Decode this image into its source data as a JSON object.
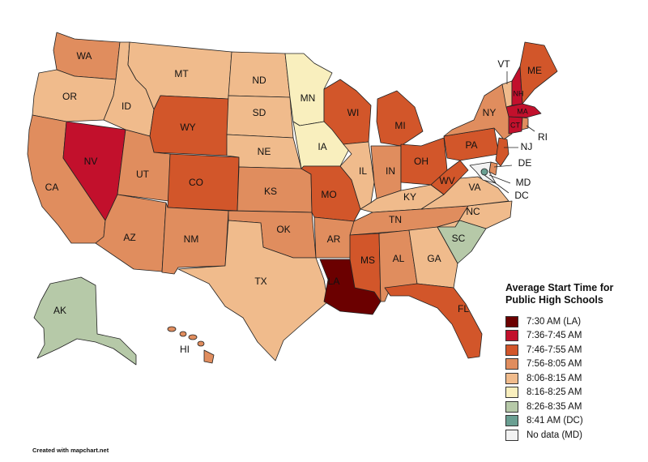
{
  "legend": {
    "title_line1": "Average Start Time for",
    "title_line2": "Public High Schools",
    "items": [
      {
        "label": "7:30 AM (LA)",
        "color": "#6b0000"
      },
      {
        "label": "7:36-7:45 AM",
        "color": "#c2102c"
      },
      {
        "label": "7:46-7:55 AM",
        "color": "#d2562a"
      },
      {
        "label": "7:56-8:05 AM",
        "color": "#e08d5e"
      },
      {
        "label": "8:06-8:15 AM",
        "color": "#f0bb8c"
      },
      {
        "label": "8:16-8:25 AM",
        "color": "#f9efbe"
      },
      {
        "label": "8:26-8:35 AM",
        "color": "#b6c9a8"
      },
      {
        "label": "8:41 AM (DC)",
        "color": "#6a9f92"
      },
      {
        "label": "No data (MD)",
        "color": "#f2f2f2"
      }
    ]
  },
  "credit": "Created with mapchart.net",
  "states": {
    "WA": {
      "label": "WA",
      "category": 3
    },
    "OR": {
      "label": "OR",
      "category": 4
    },
    "CA": {
      "label": "CA",
      "category": 3
    },
    "NV": {
      "label": "NV",
      "category": 1
    },
    "ID": {
      "label": "ID",
      "category": 4
    },
    "MT": {
      "label": "MT",
      "category": 4
    },
    "WY": {
      "label": "WY",
      "category": 2
    },
    "UT": {
      "label": "UT",
      "category": 3
    },
    "AZ": {
      "label": "AZ",
      "category": 3
    },
    "CO": {
      "label": "CO",
      "category": 2
    },
    "NM": {
      "label": "NM",
      "category": 3
    },
    "ND": {
      "label": "ND",
      "category": 4
    },
    "SD": {
      "label": "SD",
      "category": 4
    },
    "NE": {
      "label": "NE",
      "category": 4
    },
    "KS": {
      "label": "KS",
      "category": 3
    },
    "OK": {
      "label": "OK",
      "category": 3
    },
    "TX": {
      "label": "TX",
      "category": 4
    },
    "MN": {
      "label": "MN",
      "category": 5
    },
    "IA": {
      "label": "IA",
      "category": 5
    },
    "MO": {
      "label": "MO",
      "category": 2
    },
    "AR": {
      "label": "AR",
      "category": 3
    },
    "LA": {
      "label": "LA",
      "category": 0
    },
    "WI": {
      "label": "WI",
      "category": 2
    },
    "IL": {
      "label": "IL",
      "category": 4
    },
    "MI": {
      "label": "MI",
      "category": 2
    },
    "IN": {
      "label": "IN",
      "category": 3
    },
    "OH": {
      "label": "OH",
      "category": 2
    },
    "KY": {
      "label": "KY",
      "category": 4
    },
    "TN": {
      "label": "TN",
      "category": 3
    },
    "MS": {
      "label": "MS",
      "category": 2
    },
    "AL": {
      "label": "AL",
      "category": 3
    },
    "GA": {
      "label": "GA",
      "category": 4
    },
    "FL": {
      "label": "FL",
      "category": 2
    },
    "SC": {
      "label": "SC",
      "category": 6
    },
    "NC": {
      "label": "NC",
      "category": 4
    },
    "VA": {
      "label": "VA",
      "category": 4
    },
    "WV": {
      "label": "WV",
      "category": 2
    },
    "PA": {
      "label": "PA",
      "category": 2
    },
    "NY": {
      "label": "NY",
      "category": 3
    },
    "NJ": {
      "label": "NJ",
      "category": 2
    },
    "DE": {
      "label": "DE",
      "category": 3
    },
    "MD": {
      "label": "MD",
      "category": 8
    },
    "DC": {
      "label": "DC",
      "category": 7
    },
    "VT": {
      "label": "VT",
      "category": 4
    },
    "NH": {
      "label": "NH",
      "category": 1
    },
    "ME": {
      "label": "ME",
      "category": 2
    },
    "MA": {
      "label": "MA",
      "category": 1
    },
    "CT": {
      "label": "CT",
      "category": 1
    },
    "RI": {
      "label": "RI",
      "category": 3
    },
    "AK": {
      "label": "AK",
      "category": 6
    },
    "HI": {
      "label": "HI",
      "category": 3
    }
  }
}
